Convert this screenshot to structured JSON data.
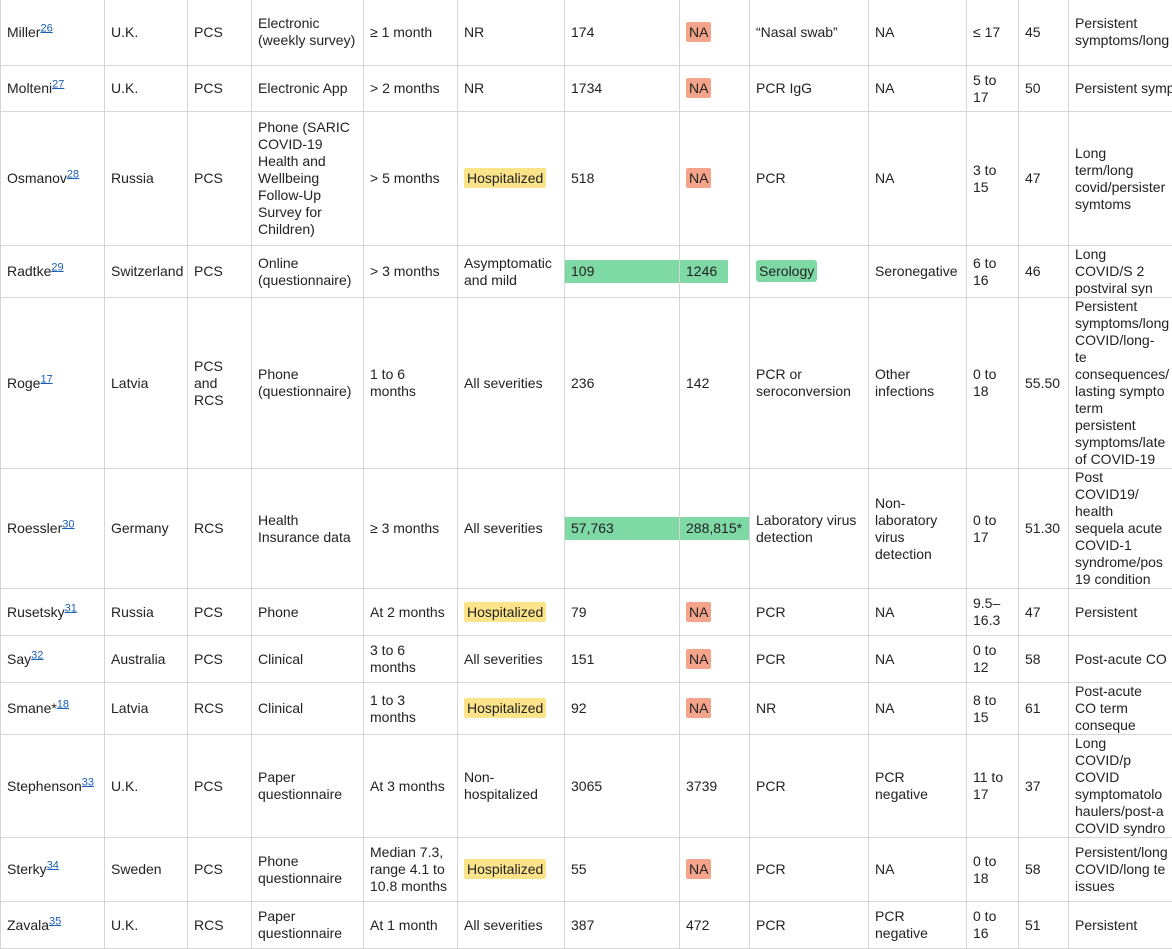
{
  "colors": {
    "yellow_highlight": "#fbe38a",
    "red_highlight": "#f4a48a",
    "green_highlight": "#7fd9a5",
    "link": "#1a5fb4"
  },
  "rows": [
    {
      "author": "Miller",
      "ref": "26",
      "country": "U.K.",
      "design": "PCS",
      "method": "Electronic (weekly survey)",
      "followup": "≥ 1 month",
      "severity": "NR",
      "cases": "174",
      "controls": "NA",
      "diagnosis": "“Nasal swab”",
      "control_def": "NA",
      "age": "≤ 17",
      "quality": "45",
      "terms": "Persistent symptoms/long"
    },
    {
      "author": "Molteni",
      "ref": "27",
      "country": "U.K.",
      "design": "PCS",
      "method": "Electronic App",
      "followup": "> 2 months",
      "severity": "NR",
      "cases": "1734",
      "controls": "NA",
      "diagnosis": "PCR IgG",
      "control_def": "NA",
      "age": "5 to 17",
      "quality": "50",
      "terms": "Persistent symp"
    },
    {
      "author": "Osmanov",
      "ref": "28",
      "country": "Russia",
      "design": "PCS",
      "method": "Phone (SARIC COVID-19 Health and Wellbeing Follow-Up Survey for Children)",
      "followup": "> 5 months",
      "severity": "Hospitalized",
      "cases": "518",
      "controls": "NA",
      "diagnosis": "PCR",
      "control_def": "NA",
      "age": "3 to 15",
      "quality": "47",
      "terms": "Long term/long covid/persister symtoms"
    },
    {
      "author": "Radtke",
      "ref": "29",
      "country": "Switzerland",
      "design": "PCS",
      "method": "Online (questionnaire)",
      "followup": "> 3 months",
      "severity": "Asymptomatic and mild",
      "cases": "109",
      "controls": "1246",
      "diagnosis": "Serology",
      "control_def": "Seronegative",
      "age": "6 to 16",
      "quality": "46",
      "terms": "Long COVID/S 2 postviral syn"
    },
    {
      "author": "Roge",
      "ref": "17",
      "country": "Latvia",
      "design": "PCS and RCS",
      "method": "Phone (questionnaire)",
      "followup": "1 to 6 months",
      "severity": "All severities",
      "cases": "236",
      "controls": "142",
      "diagnosis": "PCR or seroconversion",
      "control_def": "Other infections",
      "age": "0 to 18",
      "quality": "55.50",
      "terms": "Persistent symptoms/long COVID/long-te consequences/ lasting sympto term persistent symptoms/late of COVID-19"
    },
    {
      "author": "Roessler",
      "ref": "30",
      "country": "Germany",
      "design": "RCS",
      "method": "Health Insurance data",
      "followup": "≥ 3 months",
      "severity": "All severities",
      "cases": "57,763",
      "controls": "288,815*",
      "diagnosis": "Laboratory virus detection",
      "control_def": "Non-laboratory virus detection",
      "age": "0 to 17",
      "quality": "51.30",
      "terms": "Post COVID19/ health sequela acute COVID-1 syndrome/pos 19 condition"
    },
    {
      "author": "Rusetsky",
      "ref": "31",
      "country": "Russia",
      "design": "PCS",
      "method": "Phone",
      "followup": "At 2 months",
      "severity": "Hospitalized",
      "cases": "79",
      "controls": "NA",
      "diagnosis": "PCR",
      "control_def": "NA",
      "age": "9.5–16.3",
      "quality": "47",
      "terms": "Persistent"
    },
    {
      "author": "Say",
      "ref": "32",
      "country": "Australia",
      "design": "PCS",
      "method": "Clinical",
      "followup": "3 to 6 months",
      "severity": "All severities",
      "cases": "151",
      "controls": "NA",
      "diagnosis": "PCR",
      "control_def": "NA",
      "age": "0 to 12",
      "quality": "58",
      "terms": "Post-acute CO"
    },
    {
      "author": "Smane*",
      "ref": "18",
      "country": "Latvia",
      "design": "RCS",
      "method": "Clinical",
      "followup": "1 to 3 months",
      "severity": "Hospitalized",
      "cases": "92",
      "controls": "NA",
      "diagnosis": "NR",
      "control_def": "NA",
      "age": "8 to 15",
      "quality": "61",
      "terms": "Post-acute CO term conseque"
    },
    {
      "author": "Stephenson",
      "ref": "33",
      "country": "U.K.",
      "design": "PCS",
      "method": "Paper questionnaire",
      "followup": "At 3 months",
      "severity": "Non-hospitalized",
      "cases": "3065",
      "controls": "3739",
      "diagnosis": "PCR",
      "control_def": "PCR negative",
      "age": "11 to 17",
      "quality": "37",
      "terms": "Long COVID/p COVID symptomatolo haulers/post-a COVID syndro"
    },
    {
      "author": "Sterky",
      "ref": "34",
      "country": "Sweden",
      "design": "PCS",
      "method": "Phone questionnaire",
      "followup": "Median 7.3, range 4.1 to 10.8 months",
      "severity": "Hospitalized",
      "cases": "55",
      "controls": "NA",
      "diagnosis": "PCR",
      "control_def": "NA",
      "age": "0 to 18",
      "quality": "58",
      "terms": "Persistent/long COVID/long te issues"
    },
    {
      "author": "Zavala",
      "ref": "35",
      "country": "U.K.",
      "design": "RCS",
      "method": "Paper questionnaire",
      "followup": "At 1 month",
      "severity": "All severities",
      "cases": "387",
      "controls": "472",
      "diagnosis": "PCR",
      "control_def": "PCR negative",
      "age": "0 to 16",
      "quality": "51",
      "terms": "Persistent"
    }
  ]
}
